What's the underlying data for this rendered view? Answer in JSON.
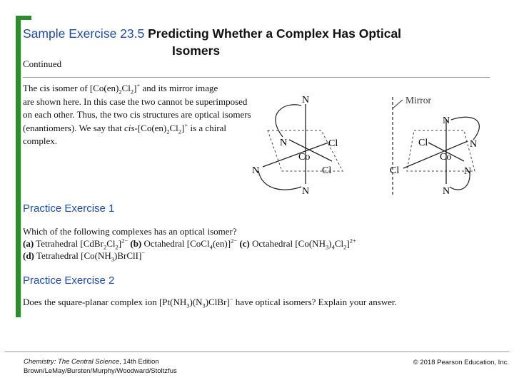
{
  "header": {
    "number": "Sample Exercise 23.5",
    "title_line1": "Predicting Whether a Complex Has Optical",
    "title_line2": "Isomers"
  },
  "continued": "Continued",
  "paragraph": {
    "l1a": "The cis isomer of [Co(en)",
    "l1s1": "2",
    "l1b": "Cl",
    "l1s2": "2",
    "l1b2": "]",
    "l1sup": "+",
    "l1c": " and its mirror image",
    "l2": "are shown here. In this case the two cannot be superimposed",
    "l3": "on each other. Thus, the two cis structures are optical isomers",
    "l4": "(enantiomers). We say that ",
    "l4i": "cis",
    "l4a": "-[Co(en)",
    "l4s1": "2",
    "l4b": "Cl",
    "l4s2": "2",
    "l4c": "]",
    "l4sup": "+",
    "l4d": " is a chiral",
    "l5": "complex."
  },
  "diagram": {
    "mirror_label": "Mirror",
    "left": {
      "center": "Co",
      "top": "N",
      "left": "N",
      "right_upper": "Cl",
      "right_lower": "Cl",
      "bottom_left": "N",
      "bottom": "N"
    },
    "right": {
      "center": "Co",
      "top": "N",
      "left_upper": "Cl",
      "left_lower": "Cl",
      "right": "N",
      "bottom_right": "N",
      "bottom": "N"
    }
  },
  "practice1": {
    "title": "Practice Exercise 1",
    "question": "Which of the following complexes has an optical isomer?",
    "a_label": "(a)",
    "a_text": " Tetrahedral [CdBr",
    "a_s1": "2",
    "a_t2": "Cl",
    "a_s2": "2",
    "a_t3": "]",
    "a_sup": "2−",
    "b_label": " (b)",
    "b_text": " Octahedral [CoCl",
    "b_s1": "4",
    "b_t2": "(en)]",
    "b_sup": "2−",
    "c_label": " (c)",
    "c_text": " Octahedral [Co(NH",
    "c_s1": "3",
    "c_t2": ")",
    "c_s2": "4",
    "c_t3": "Cl",
    "c_s3": "2",
    "c_t4": "]",
    "c_sup": "2+",
    "d_label": "(d)",
    "d_text": " Tetrahedral [Co(NH",
    "d_s1": "3",
    "d_t2": ")BrClI]",
    "d_sup": "−"
  },
  "practice2": {
    "title": "Practice Exercise 2",
    "q_a": "Does the square-planar complex ion [Pt(NH",
    "q_s1": "3",
    "q_b": ")(N",
    "q_s2": "3",
    "q_c": ")ClBr]",
    "q_sup": "−",
    "q_d": " have optical isomers? Explain your answer."
  },
  "footer": {
    "book_title": "Chemistry: The Central Science",
    "edition": ", 14th Edition",
    "authors": "Brown/LeMay/Bursten/Murphy/Woodward/Stoltzfus",
    "copyright": "© 2018 Pearson Education, Inc."
  }
}
